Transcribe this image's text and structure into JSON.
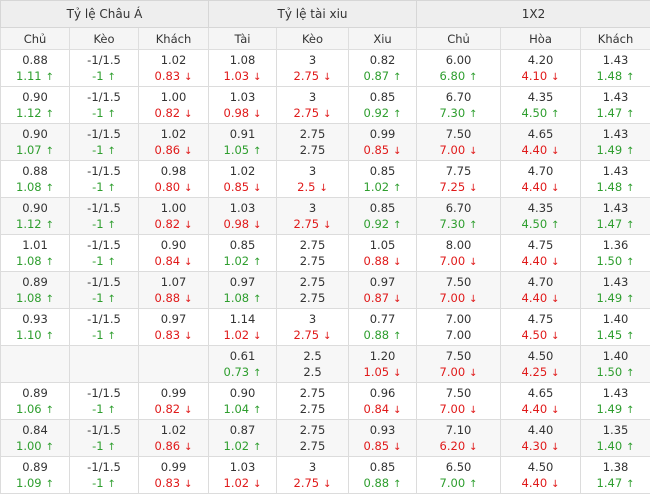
{
  "headers": {
    "groups": [
      {
        "label": "Tỷ lệ Châu Á",
        "span": 3
      },
      {
        "label": "Tỷ lệ tài xiu",
        "span": 3
      },
      {
        "label": "1X2",
        "span": 3
      }
    ],
    "columns": [
      "Chủ",
      "Kèo",
      "Khách",
      "Tài",
      "Kèo",
      "Xiu",
      "Chủ",
      "Hòa",
      "Khách"
    ]
  },
  "rows": [
    {
      "shade": false,
      "cells": [
        [
          "0.88",
          "1.11",
          "up"
        ],
        [
          "-1/1.5",
          "-1",
          "up"
        ],
        [
          "1.02",
          "0.83",
          "down"
        ],
        [
          "1.08",
          "1.03",
          "down"
        ],
        [
          "3",
          "2.75",
          "down"
        ],
        [
          "0.82",
          "0.87",
          "up"
        ],
        [
          "6.00",
          "6.80",
          "up"
        ],
        [
          "4.20",
          "4.10",
          "down"
        ],
        [
          "1.43",
          "1.48",
          "up"
        ]
      ]
    },
    {
      "shade": false,
      "cells": [
        [
          "0.90",
          "1.12",
          "up"
        ],
        [
          "-1/1.5",
          "-1",
          "up"
        ],
        [
          "1.00",
          "0.82",
          "down"
        ],
        [
          "1.03",
          "0.98",
          "down"
        ],
        [
          "3",
          "2.75",
          "down"
        ],
        [
          "0.85",
          "0.92",
          "up"
        ],
        [
          "6.70",
          "7.30",
          "up"
        ],
        [
          "4.35",
          "4.50",
          "up"
        ],
        [
          "1.43",
          "1.47",
          "up"
        ]
      ]
    },
    {
      "shade": true,
      "cells": [
        [
          "0.90",
          "1.07",
          "up"
        ],
        [
          "-1/1.5",
          "-1",
          "up"
        ],
        [
          "1.02",
          "0.86",
          "down"
        ],
        [
          "0.91",
          "1.05",
          "up"
        ],
        [
          "2.75",
          "2.75",
          "flat"
        ],
        [
          "0.99",
          "0.85",
          "down"
        ],
        [
          "7.50",
          "7.00",
          "down"
        ],
        [
          "4.65",
          "4.40",
          "down"
        ],
        [
          "1.43",
          "1.49",
          "up"
        ]
      ]
    },
    {
      "shade": false,
      "cells": [
        [
          "0.88",
          "1.08",
          "up"
        ],
        [
          "-1/1.5",
          "-1",
          "up"
        ],
        [
          "0.98",
          "0.80",
          "down"
        ],
        [
          "1.02",
          "0.85",
          "down"
        ],
        [
          "3",
          "2.5",
          "down"
        ],
        [
          "0.85",
          "1.02",
          "up"
        ],
        [
          "7.75",
          "7.25",
          "down"
        ],
        [
          "4.70",
          "4.40",
          "down"
        ],
        [
          "1.43",
          "1.48",
          "up"
        ]
      ]
    },
    {
      "shade": true,
      "cells": [
        [
          "0.90",
          "1.12",
          "up"
        ],
        [
          "-1/1.5",
          "-1",
          "up"
        ],
        [
          "1.00",
          "0.82",
          "down"
        ],
        [
          "1.03",
          "0.98",
          "down"
        ],
        [
          "3",
          "2.75",
          "down"
        ],
        [
          "0.85",
          "0.92",
          "up"
        ],
        [
          "6.70",
          "7.30",
          "up"
        ],
        [
          "4.35",
          "4.50",
          "up"
        ],
        [
          "1.43",
          "1.47",
          "up"
        ]
      ]
    },
    {
      "shade": false,
      "cells": [
        [
          "1.01",
          "1.08",
          "up"
        ],
        [
          "-1/1.5",
          "-1",
          "up"
        ],
        [
          "0.90",
          "0.84",
          "down"
        ],
        [
          "0.85",
          "1.02",
          "up"
        ],
        [
          "2.75",
          "2.75",
          "flat"
        ],
        [
          "1.05",
          "0.88",
          "down"
        ],
        [
          "8.00",
          "7.00",
          "down"
        ],
        [
          "4.75",
          "4.40",
          "down"
        ],
        [
          "1.36",
          "1.50",
          "up"
        ]
      ]
    },
    {
      "shade": true,
      "cells": [
        [
          "0.89",
          "1.08",
          "up"
        ],
        [
          "-1/1.5",
          "-1",
          "up"
        ],
        [
          "1.07",
          "0.88",
          "down"
        ],
        [
          "0.97",
          "1.08",
          "up"
        ],
        [
          "2.75",
          "2.75",
          "flat"
        ],
        [
          "0.97",
          "0.87",
          "down"
        ],
        [
          "7.50",
          "7.00",
          "down"
        ],
        [
          "4.70",
          "4.40",
          "down"
        ],
        [
          "1.43",
          "1.49",
          "up"
        ]
      ]
    },
    {
      "shade": false,
      "cells": [
        [
          "0.93",
          "1.10",
          "up"
        ],
        [
          "-1/1.5",
          "-1",
          "up"
        ],
        [
          "0.97",
          "0.83",
          "down"
        ],
        [
          "1.14",
          "1.02",
          "down"
        ],
        [
          "3",
          "2.75",
          "down"
        ],
        [
          "0.77",
          "0.88",
          "up"
        ],
        [
          "7.00",
          "7.00",
          "flat"
        ],
        [
          "4.75",
          "4.50",
          "down"
        ],
        [
          "1.40",
          "1.45",
          "up"
        ]
      ]
    },
    {
      "shade": true,
      "cells": [
        [
          "",
          "",
          "none"
        ],
        [
          "",
          "",
          "none"
        ],
        [
          "",
          "",
          "none"
        ],
        [
          "0.61",
          "0.73",
          "up"
        ],
        [
          "2.5",
          "2.5",
          "flat"
        ],
        [
          "1.20",
          "1.05",
          "down"
        ],
        [
          "7.50",
          "7.00",
          "down"
        ],
        [
          "4.50",
          "4.25",
          "down"
        ],
        [
          "1.40",
          "1.50",
          "up"
        ]
      ]
    },
    {
      "shade": false,
      "cells": [
        [
          "0.89",
          "1.06",
          "up"
        ],
        [
          "-1/1.5",
          "-1",
          "up"
        ],
        [
          "0.99",
          "0.82",
          "down"
        ],
        [
          "0.90",
          "1.04",
          "up"
        ],
        [
          "2.75",
          "2.75",
          "flat"
        ],
        [
          "0.96",
          "0.84",
          "down"
        ],
        [
          "7.50",
          "7.00",
          "down"
        ],
        [
          "4.65",
          "4.40",
          "down"
        ],
        [
          "1.43",
          "1.49",
          "up"
        ]
      ]
    },
    {
      "shade": true,
      "cells": [
        [
          "0.84",
          "1.00",
          "up"
        ],
        [
          "-1/1.5",
          "-1",
          "up"
        ],
        [
          "1.02",
          "0.86",
          "down"
        ],
        [
          "0.87",
          "1.02",
          "up"
        ],
        [
          "2.75",
          "2.75",
          "flat"
        ],
        [
          "0.93",
          "0.85",
          "down"
        ],
        [
          "7.10",
          "6.20",
          "down"
        ],
        [
          "4.40",
          "4.30",
          "down"
        ],
        [
          "1.35",
          "1.40",
          "up"
        ]
      ]
    },
    {
      "shade": false,
      "cells": [
        [
          "0.89",
          "1.09",
          "up"
        ],
        [
          "-1/1.5",
          "-1",
          "up"
        ],
        [
          "0.99",
          "0.83",
          "down"
        ],
        [
          "1.03",
          "1.02",
          "down"
        ],
        [
          "3",
          "2.75",
          "down"
        ],
        [
          "0.85",
          "0.88",
          "up"
        ],
        [
          "6.50",
          "7.00",
          "up"
        ],
        [
          "4.50",
          "4.40",
          "down"
        ],
        [
          "1.38",
          "1.47",
          "up"
        ]
      ]
    }
  ]
}
